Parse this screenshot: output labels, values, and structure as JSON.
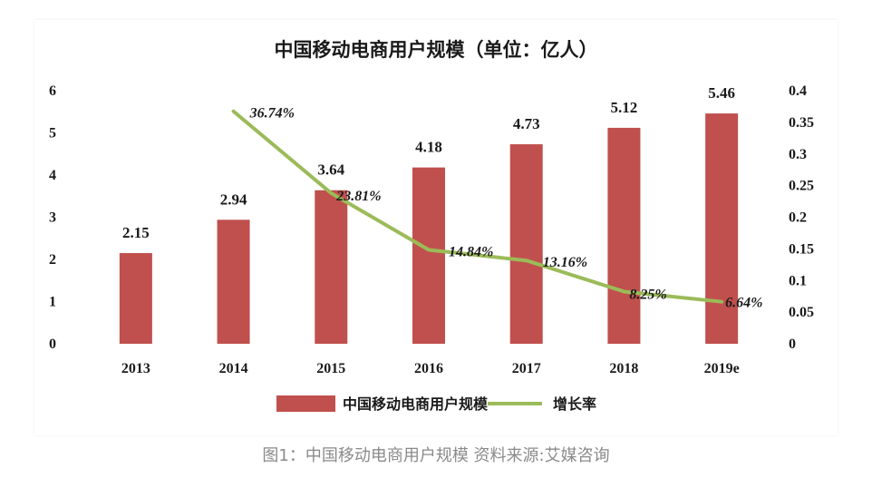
{
  "colors": {
    "bar": "#c0504d",
    "line": "#9bbb59",
    "background": "#ffffff",
    "caption": "#8a8a8a"
  },
  "chart_data": {
    "type": "bar",
    "title": "中国移动电商用户规模（单位：亿人）",
    "categories": [
      "2013",
      "2014",
      "2015",
      "2016",
      "2017",
      "2018",
      "2019e"
    ],
    "series": [
      {
        "name": "中国移动电商用户规模",
        "type": "bar",
        "axis": "left",
        "values": [
          2.15,
          2.94,
          3.64,
          4.18,
          4.73,
          5.12,
          5.46
        ],
        "labels": [
          "2.15",
          "2.94",
          "3.64",
          "4.18",
          "4.73",
          "5.12",
          "5.46"
        ]
      },
      {
        "name": "增长率",
        "type": "line",
        "axis": "right",
        "values": [
          null,
          0.3674,
          0.2381,
          0.1484,
          0.1316,
          0.0825,
          0.0664
        ],
        "labels": [
          "",
          "36.74%",
          "23.81%",
          "14.84%",
          "13.16%",
          "8.25%",
          "6.64%"
        ]
      }
    ],
    "ylim": [
      0,
      6
    ],
    "yticks": [
      "0",
      "1",
      "2",
      "3",
      "4",
      "5",
      "6"
    ],
    "y2lim": [
      0,
      0.4
    ],
    "y2ticks": [
      "0",
      "0.05",
      "0.1",
      "0.15",
      "0.2",
      "0.25",
      "0.3",
      "0.35",
      "0.4"
    ],
    "legend_position": "bottom",
    "grid": false
  },
  "caption": "图1：中国移动电商用户规模  资料来源:艾媒咨询"
}
